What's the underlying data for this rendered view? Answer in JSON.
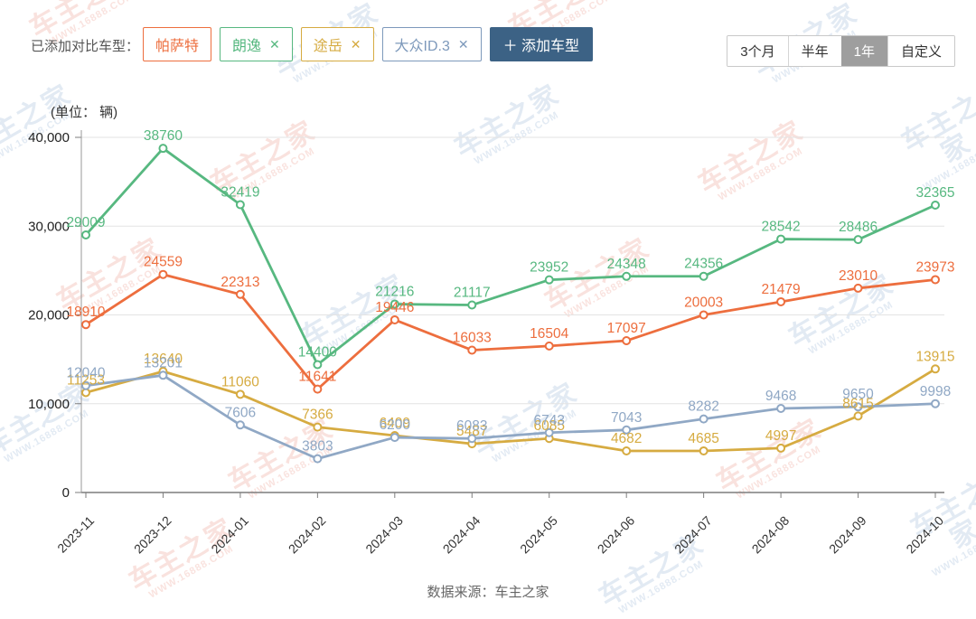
{
  "header": {
    "label": "已添加对比车型：",
    "tags": [
      {
        "id": "passat",
        "label": "帕萨特",
        "color": "#ed6e3e",
        "closable": false
      },
      {
        "id": "lavida",
        "label": "朗逸",
        "color": "#57b880",
        "closable": true
      },
      {
        "id": "tharu",
        "label": "途岳",
        "color": "#d6ab41",
        "closable": true
      },
      {
        "id": "vw-id3",
        "label": "大众ID.3",
        "color": "#7d99bb",
        "closable": true
      }
    ],
    "add_button_label": "＋ 添加车型",
    "add_button_color": "#3c6285"
  },
  "range_selector": {
    "options": [
      "3个月",
      "半年",
      "1年",
      "自定义"
    ],
    "selected": "1年",
    "selected_bg": "#9e9e9e"
  },
  "chart_data": {
    "type": "line",
    "unit_label": "(单位： 辆)",
    "categories": [
      "2023-11",
      "2023-12",
      "2024-01",
      "2024-02",
      "2024-03",
      "2024-04",
      "2024-05",
      "2024-06",
      "2024-07",
      "2024-08",
      "2024-09",
      "2024-10"
    ],
    "series": [
      {
        "id": "lavida",
        "name": "朗逸",
        "color": "#57b880",
        "values": [
          29009,
          38760,
          32419,
          14400,
          21216,
          21117,
          23952,
          24348,
          24356,
          28542,
          28486,
          32365
        ]
      },
      {
        "id": "passat",
        "name": "帕萨特",
        "color": "#ed6e3e",
        "values": [
          18910,
          24559,
          22313,
          11641,
          19446,
          16033,
          16504,
          17097,
          20003,
          21479,
          23010,
          23973
        ]
      },
      {
        "id": "tharu",
        "name": "途岳",
        "color": "#d6ab41",
        "values": [
          11253,
          13640,
          11060,
          7366,
          6409,
          5487,
          6085,
          4682,
          4685,
          4997,
          8615,
          13915
        ]
      },
      {
        "id": "vw-id3",
        "name": "大众ID.3",
        "color": "#90a8c5",
        "values": [
          12040,
          13201,
          7606,
          3803,
          6200,
          6083,
          6743,
          7043,
          8282,
          9468,
          9650,
          9998
        ]
      }
    ],
    "ylim": [
      0,
      40000
    ],
    "ytick_labels": [
      "0",
      "10,000",
      "20,000",
      "30,000",
      "40,000"
    ],
    "grid": true,
    "legend_position": "none",
    "show_value_labels": true
  },
  "footer": {
    "source_label": "数据来源：车主之家"
  },
  "watermark": {
    "line1": "车主之家",
    "line2": "WWW.16888.COM"
  }
}
